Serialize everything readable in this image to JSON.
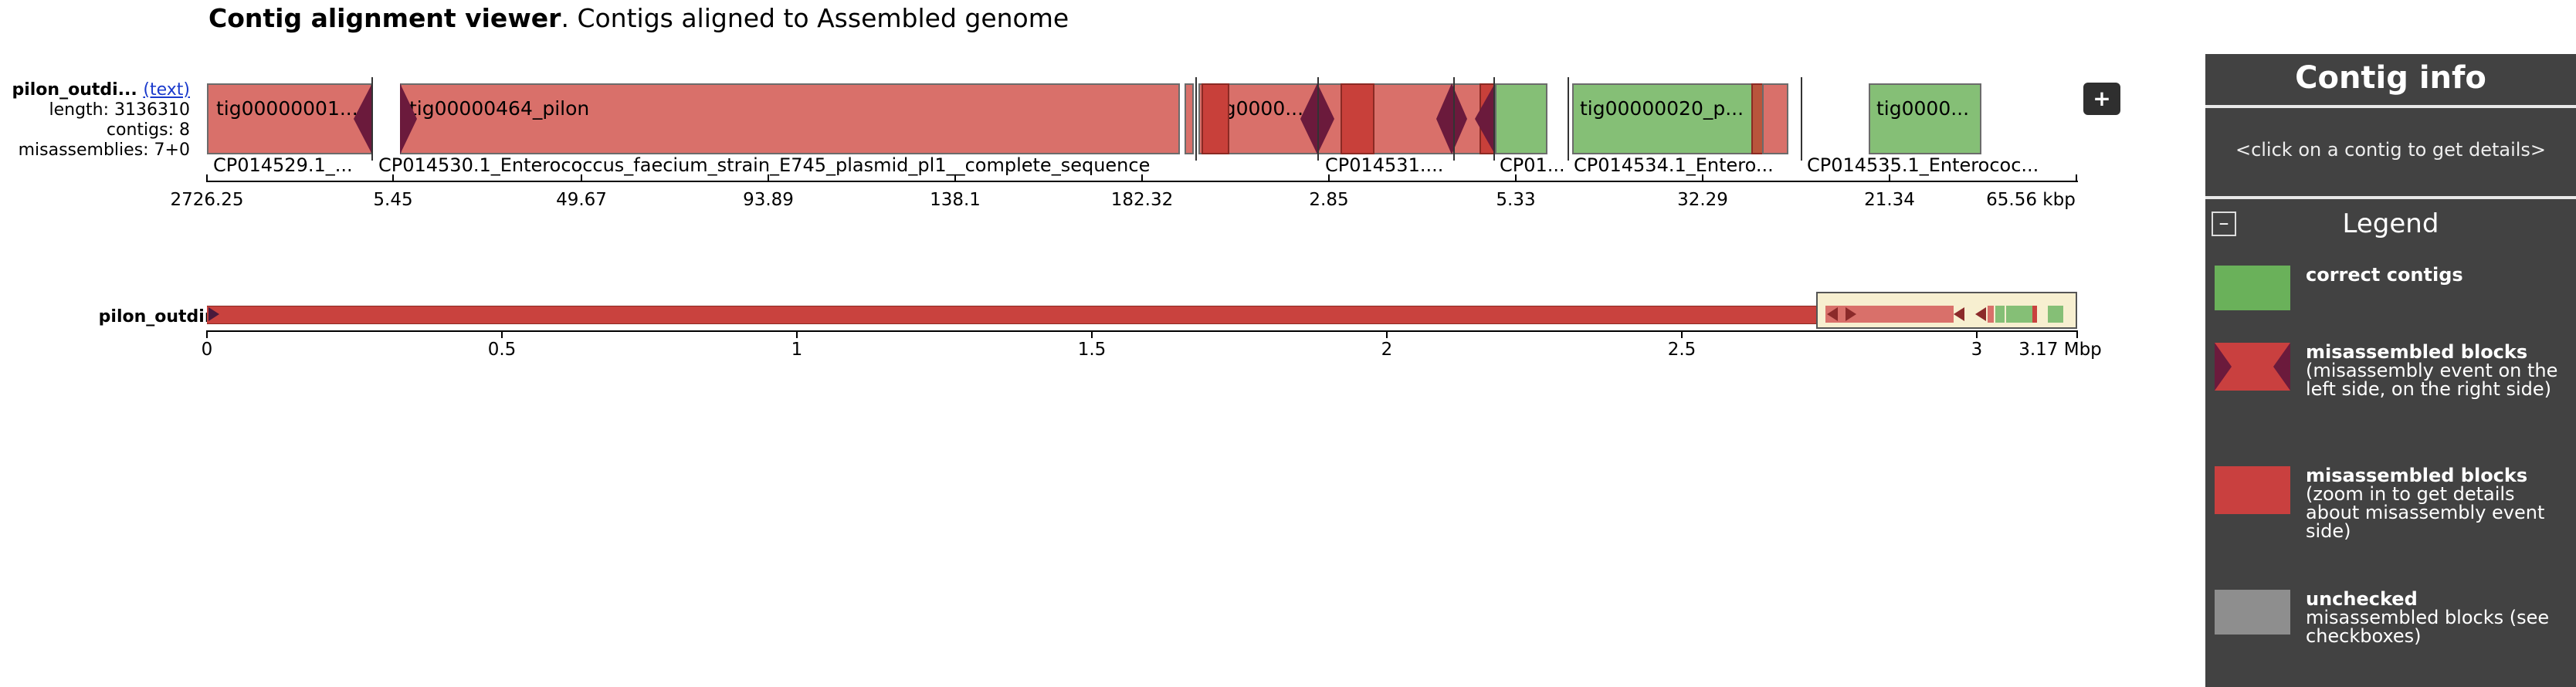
{
  "header": {
    "title_bold": "Contig alignment viewer",
    "title_rest": ". Contigs aligned to Assembled genome"
  },
  "assembly": {
    "name": "pilon_outdi...",
    "text_link": "(text)",
    "length": "length: 3136310",
    "contigs": "contigs: 8",
    "misassemblies": "misassemblies: 7+0",
    "overview_name": "pilon_outdir...."
  },
  "top_track": {
    "blocks": [
      {
        "label": "tig00000001...",
        "color": "red"
      },
      {
        "label": "tig00000464_pilon",
        "color": "red"
      },
      {
        "label": "tig0000...",
        "color": "red"
      },
      {
        "label": "tig00000020_p...",
        "color": "green"
      },
      {
        "label": "tig0000...",
        "color": "green"
      }
    ],
    "references": [
      "CP014529.1_...",
      "CP014530.1_Enterococcus_faecium_strain_E745_plasmid_pl1__complete_sequence",
      "CP014531....",
      "CP01...",
      "CP014534.1_Entero...",
      "CP014535.1_Enterococ..."
    ],
    "ticks": [
      "2726.25",
      "5.45",
      "49.67",
      "93.89",
      "138.1",
      "182.32",
      "2.85",
      "5.33",
      "32.29",
      "21.34",
      "65.56 kbp"
    ]
  },
  "overview_axis": {
    "ticks": [
      "0",
      "0.5",
      "1",
      "1.5",
      "2",
      "2.5",
      "3",
      "3.17 Mbp"
    ]
  },
  "controls": {
    "plus_label": "+",
    "collapse_label": "–"
  },
  "side_panel": {
    "contig_info_title": "Contig info",
    "contig_info_hint": "<click on a contig to get details>",
    "legend_title": "Legend",
    "legend": [
      {
        "title": "correct contigs",
        "desc": "",
        "color": "#6ab15a"
      },
      {
        "title": "misassembled blocks",
        "desc": "(misassembly event on the left side, on the right side)",
        "color": "#c9403f"
      },
      {
        "title": "misassembled blocks",
        "desc": "(zoom in to get details about misassembly event side)",
        "color": "#c9403f"
      },
      {
        "title": "unchecked",
        "desc": "misassembled blocks (see checkboxes)",
        "color": "#8e8e8e"
      }
    ]
  },
  "colors": {
    "red_block": "#d9706a",
    "green_block": "#85bf76",
    "misassembly_marker": "#6b1a3c",
    "panel_bg": "#424242"
  }
}
